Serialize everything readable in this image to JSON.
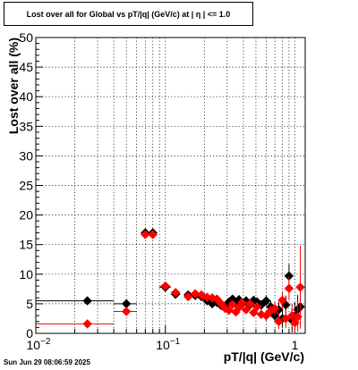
{
  "title": "Lost over all for Global vs pT/|q| (GeV/c) at |  η  | <= 1.0",
  "footer": "Sun Jun 29 08:06:59 2025",
  "chart_data": {
    "type": "scatter",
    "title": "Lost over all for Global vs pT/|q| (GeV/c) at |  η  | <= 1.0",
    "xlabel": "pT/|q| (GeV/c)",
    "ylabel": "Lost over all (%)",
    "x_scale": "log",
    "xlim": [
      0.01,
      1.2
    ],
    "ylim": [
      0,
      50
    ],
    "y_ticks": [
      0,
      5,
      10,
      15,
      20,
      25,
      30,
      35,
      40,
      45,
      50
    ],
    "x_tick_labels": [
      "10^-2",
      "10^-1",
      "1"
    ],
    "grid": true,
    "series": [
      {
        "color": "#000000",
        "marker": "diamond",
        "points": [
          {
            "x": 0.025,
            "y": 5.5,
            "xlo": 0.01,
            "xhi": 0.04,
            "yerr": 0.3
          },
          {
            "x": 0.05,
            "y": 5.0,
            "xlo": 0.04,
            "xhi": 0.06,
            "yerr": 0.3
          },
          {
            "x": 0.07,
            "y": 17.0,
            "xlo": 0.065,
            "xhi": 0.075,
            "yerr": 0.5
          },
          {
            "x": 0.08,
            "y": 17.0,
            "xlo": 0.075,
            "xhi": 0.085,
            "yerr": 0.5
          },
          {
            "x": 0.1,
            "y": 7.8,
            "xlo": 0.09,
            "xhi": 0.11,
            "yerr": 0.4
          },
          {
            "x": 0.12,
            "y": 6.6,
            "xlo": 0.11,
            "xhi": 0.13,
            "yerr": 0.4
          },
          {
            "x": 0.15,
            "y": 6.5,
            "xlo": 0.14,
            "xhi": 0.16,
            "yerr": 0.4
          },
          {
            "x": 0.17,
            "y": 6.4,
            "yerr": 0.4
          },
          {
            "x": 0.19,
            "y": 6.2,
            "yerr": 0.4
          },
          {
            "x": 0.21,
            "y": 5.5,
            "yerr": 0.4
          },
          {
            "x": 0.23,
            "y": 5.0,
            "yerr": 0.4
          },
          {
            "x": 0.25,
            "y": 5.2,
            "yerr": 0.5
          },
          {
            "x": 0.27,
            "y": 4.7,
            "yerr": 0.5
          },
          {
            "x": 0.29,
            "y": 4.5,
            "yerr": 0.5
          },
          {
            "x": 0.31,
            "y": 5.3,
            "yerr": 0.5
          },
          {
            "x": 0.33,
            "y": 5.8,
            "yerr": 0.5
          },
          {
            "x": 0.35,
            "y": 5.2,
            "yerr": 0.6
          },
          {
            "x": 0.37,
            "y": 5.7,
            "yerr": 0.6
          },
          {
            "x": 0.39,
            "y": 5.0,
            "yerr": 0.6
          },
          {
            "x": 0.42,
            "y": 5.5,
            "yerr": 0.6
          },
          {
            "x": 0.45,
            "y": 4.8,
            "yerr": 0.7
          },
          {
            "x": 0.48,
            "y": 5.6,
            "yerr": 0.7
          },
          {
            "x": 0.51,
            "y": 5.3,
            "yerr": 0.8
          },
          {
            "x": 0.55,
            "y": 4.8,
            "yerr": 0.8
          },
          {
            "x": 0.6,
            "y": 5.5,
            "yerr": 0.9
          },
          {
            "x": 0.65,
            "y": 4.5,
            "yerr": 1.0
          },
          {
            "x": 0.7,
            "y": 3.0,
            "yerr": 1.2
          },
          {
            "x": 0.75,
            "y": 4.0,
            "yerr": 1.3
          },
          {
            "x": 0.8,
            "y": 2.5,
            "yerr": 1.5
          },
          {
            "x": 0.85,
            "y": 4.8,
            "yerr": 1.6
          },
          {
            "x": 0.9,
            "y": 9.7,
            "yerr": 2.0
          },
          {
            "x": 0.95,
            "y": 2.2,
            "yerr": 2.0
          },
          {
            "x": 1.0,
            "y": 3.0,
            "yerr": 2.2
          },
          {
            "x": 1.05,
            "y": 4.0,
            "yerr": 2.5
          },
          {
            "x": 1.1,
            "y": 4.5,
            "yerr": 3.0
          }
        ]
      },
      {
        "color": "#ff0000",
        "marker": "diamond",
        "points": [
          {
            "x": 0.025,
            "y": 1.6,
            "xlo": 0.01,
            "xhi": 0.04,
            "yerr": 0.3
          },
          {
            "x": 0.05,
            "y": 3.7,
            "xlo": 0.04,
            "xhi": 0.06,
            "yerr": 0.3
          },
          {
            "x": 0.07,
            "y": 16.7,
            "xlo": 0.065,
            "xhi": 0.075,
            "yerr": 0.5
          },
          {
            "x": 0.08,
            "y": 16.7,
            "xlo": 0.075,
            "xhi": 0.085,
            "yerr": 0.5
          },
          {
            "x": 0.1,
            "y": 8.0,
            "xlo": 0.09,
            "xhi": 0.11,
            "yerr": 0.4
          },
          {
            "x": 0.12,
            "y": 6.9,
            "xlo": 0.11,
            "xhi": 0.13,
            "yerr": 0.4
          },
          {
            "x": 0.15,
            "y": 6.2,
            "xlo": 0.14,
            "xhi": 0.16,
            "yerr": 0.4
          },
          {
            "x": 0.17,
            "y": 6.7,
            "yerr": 0.4
          },
          {
            "x": 0.19,
            "y": 6.5,
            "yerr": 0.4
          },
          {
            "x": 0.21,
            "y": 6.1,
            "yerr": 0.4
          },
          {
            "x": 0.23,
            "y": 6.0,
            "yerr": 0.4
          },
          {
            "x": 0.25,
            "y": 5.8,
            "yerr": 0.5
          },
          {
            "x": 0.27,
            "y": 5.0,
            "yerr": 0.5
          },
          {
            "x": 0.29,
            "y": 4.2,
            "yerr": 0.5
          },
          {
            "x": 0.31,
            "y": 3.9,
            "yerr": 0.5
          },
          {
            "x": 0.33,
            "y": 4.9,
            "yerr": 0.5
          },
          {
            "x": 0.35,
            "y": 3.6,
            "yerr": 0.6
          },
          {
            "x": 0.37,
            "y": 4.4,
            "yerr": 0.6
          },
          {
            "x": 0.39,
            "y": 5.2,
            "yerr": 0.6
          },
          {
            "x": 0.42,
            "y": 4.0,
            "yerr": 0.6
          },
          {
            "x": 0.45,
            "y": 5.0,
            "yerr": 0.7
          },
          {
            "x": 0.48,
            "y": 3.5,
            "yerr": 0.7
          },
          {
            "x": 0.51,
            "y": 4.5,
            "yerr": 0.8
          },
          {
            "x": 0.55,
            "y": 3.2,
            "yerr": 0.8
          },
          {
            "x": 0.6,
            "y": 3.0,
            "yerr": 0.9
          },
          {
            "x": 0.65,
            "y": 3.8,
            "yerr": 1.0
          },
          {
            "x": 0.7,
            "y": 4.2,
            "yerr": 1.2
          },
          {
            "x": 0.75,
            "y": 2.0,
            "yerr": 1.3
          },
          {
            "x": 0.8,
            "y": 5.6,
            "yerr": 1.5
          },
          {
            "x": 0.85,
            "y": 2.5,
            "yerr": 1.6
          },
          {
            "x": 0.9,
            "y": 7.6,
            "yerr": 2.0
          },
          {
            "x": 0.95,
            "y": 3.0,
            "yerr": 2.0
          },
          {
            "x": 1.0,
            "y": 1.8,
            "yerr": 2.2
          },
          {
            "x": 1.05,
            "y": 2.8,
            "yerr": 2.5
          },
          {
            "x": 1.1,
            "y": 7.8,
            "yerr": 7.0
          }
        ]
      }
    ]
  }
}
